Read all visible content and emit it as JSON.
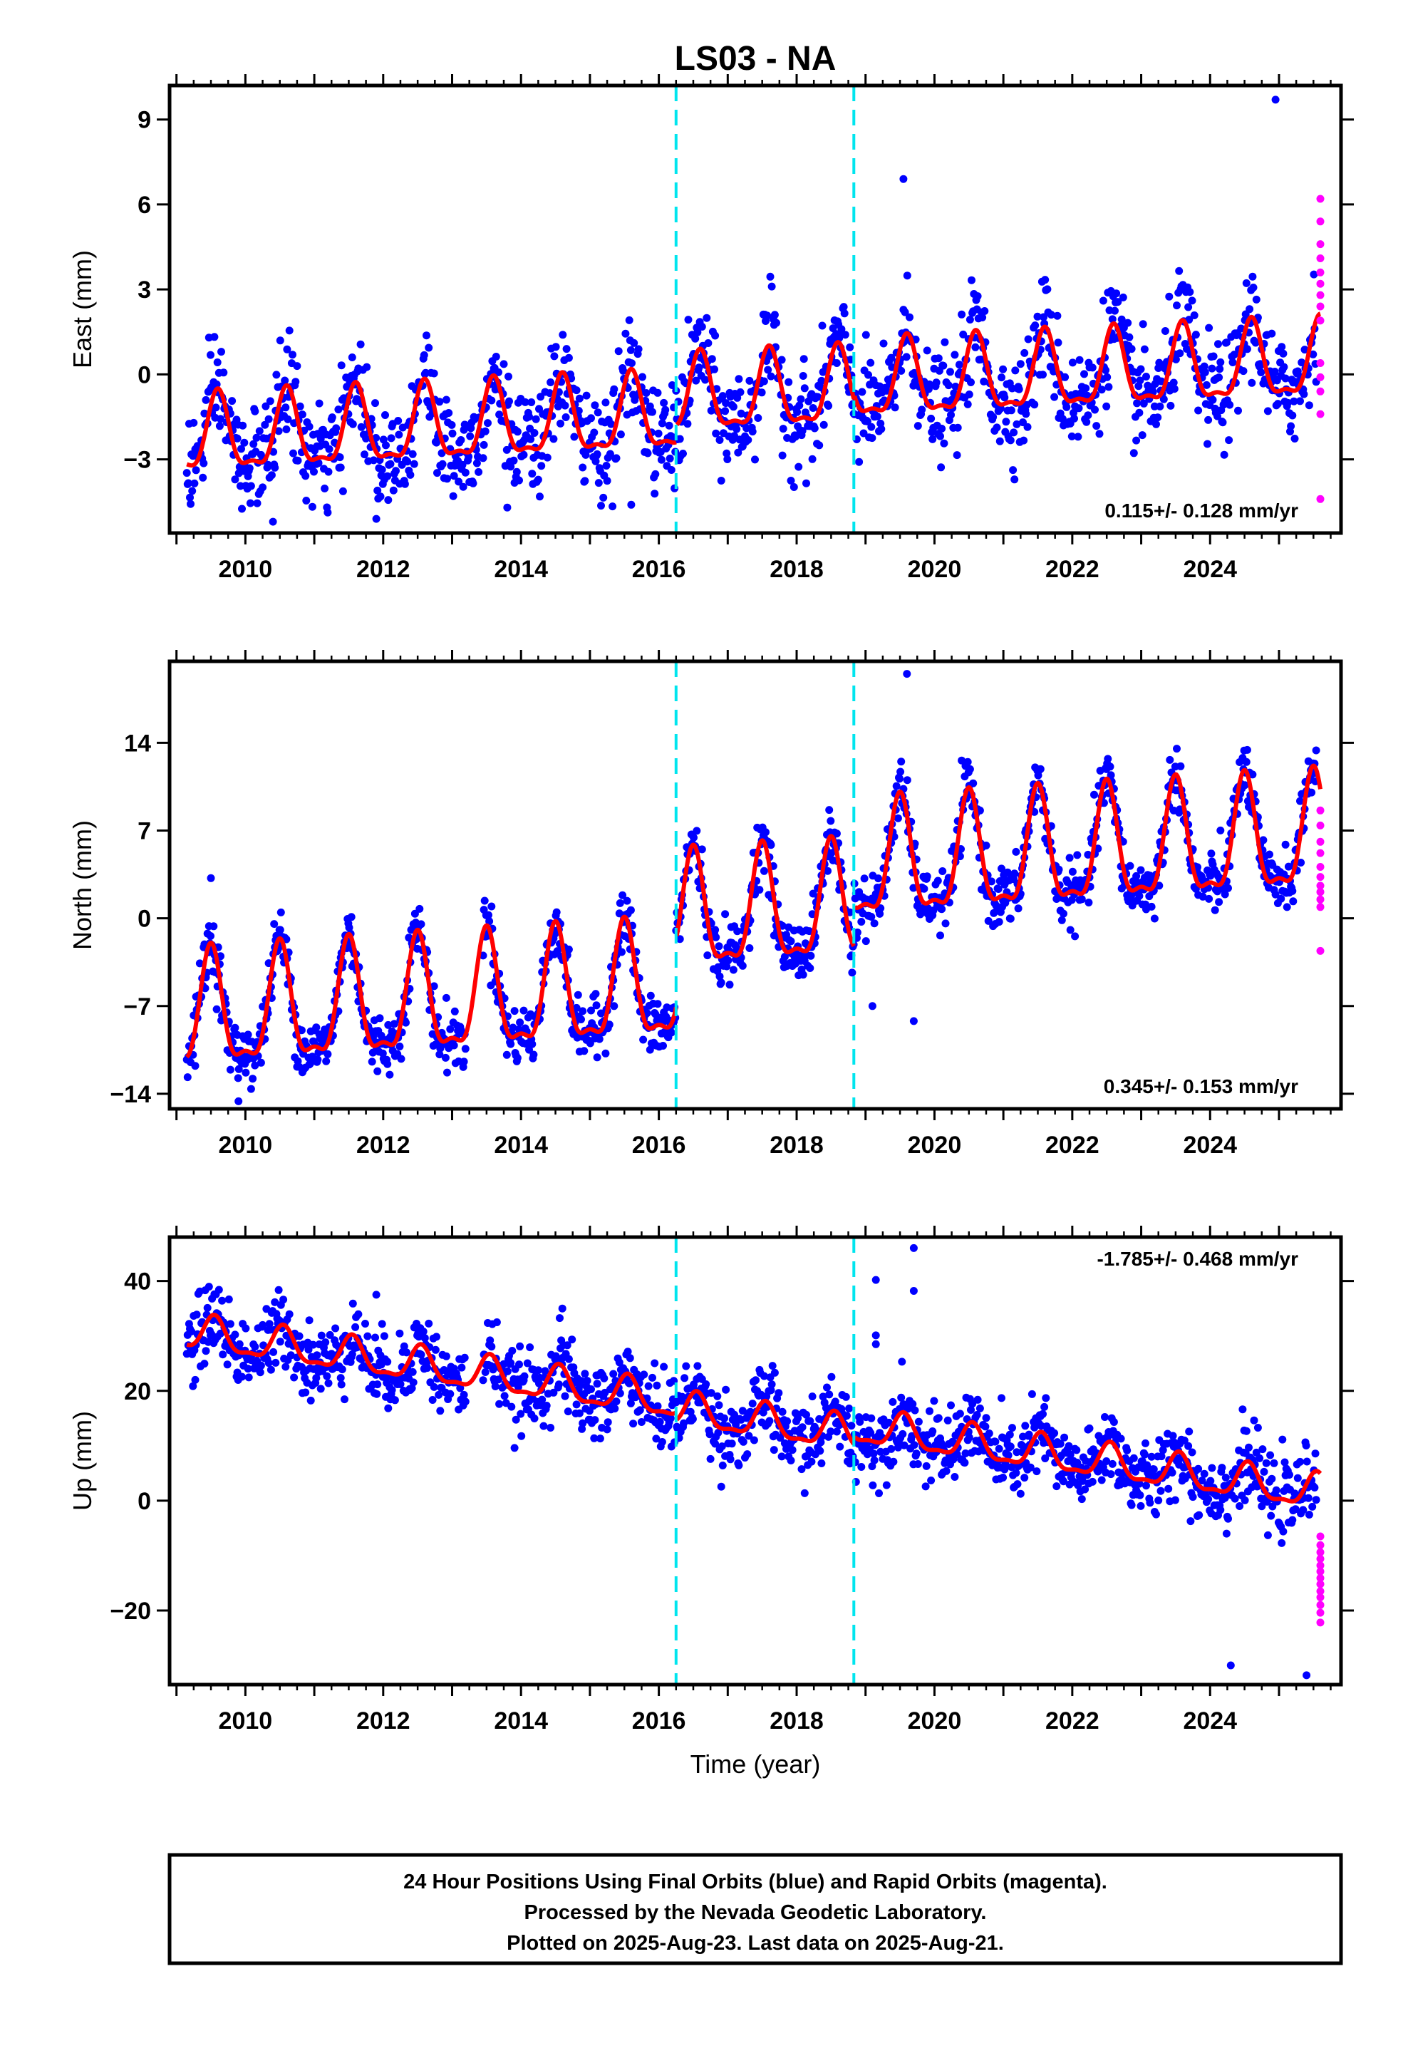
{
  "chart_data": {
    "type": "scatter",
    "title": "LS03 - NA",
    "xlabel": "Time (year)",
    "x_ticks": [
      2010,
      2012,
      2014,
      2016,
      2018,
      2020,
      2022,
      2024
    ],
    "xlim": [
      2008.9,
      2025.9
    ],
    "equipment_change_epochs": [
      2016.25,
      2018.83
    ],
    "colors": {
      "final_orbits": "#0000ff",
      "rapid_orbits": "#ff00ff",
      "model_fit": "#ff0000",
      "equipment_change": "#00e5ee"
    },
    "panels": [
      {
        "component": "east",
        "ylabel": "East (mm)",
        "ylim": [
          -5.6,
          10.2
        ],
        "y_ticks": [
          -3,
          0,
          3,
          6,
          9
        ],
        "y_tick_labels": [
          "−3",
          "0",
          "3",
          "6",
          "9"
        ],
        "rate_text": "0.115+/- 0.128 mm/yr",
        "rate_position": "bottom-right",
        "model": {
          "offsets": [
            -1.4,
            0.6,
            0.2,
            0.6
          ],
          "trend": 0.115,
          "amplitude": 1.3,
          "phase_year": 0.6
        },
        "scatter_sigma": 0.9,
        "rapid_values": [
          6.2,
          5.4,
          4.6,
          4.1,
          3.6,
          3.2,
          2.8,
          2.4,
          1.9,
          0.4,
          -0.1,
          -0.6,
          -1.4,
          -4.4
        ],
        "outliers": [
          [
            2024.95,
            9.7
          ],
          [
            2019.55,
            6.9
          ],
          [
            2010.4,
            -5.2
          ],
          [
            2011.9,
            -5.1
          ],
          [
            2013.8,
            -4.7
          ],
          [
            2015.6,
            -4.6
          ]
        ]
      },
      {
        "component": "north",
        "ylabel": "North (mm)",
        "ylim": [
          -15.2,
          20.5
        ],
        "y_ticks": [
          -14,
          -7,
          0,
          7,
          14
        ],
        "y_tick_labels": [
          "−14",
          "−7",
          "0",
          "7",
          "14"
        ],
        "rate_text": "0.345+/- 0.153 mm/yr",
        "rate_position": "bottom-right",
        "model": {
          "offsets": [
            -5.3,
            5.4,
            3.2,
            3.6
          ],
          "trend": 0.345,
          "amplitude": 4.4,
          "phase_year": 0.5
        },
        "scatter_sigma": 1.2,
        "rapid_values": [
          8.6,
          7.4,
          6.1,
          5.2,
          4.1,
          3.3,
          2.6,
          2.1,
          1.5,
          0.9,
          -2.6
        ],
        "outliers": [
          [
            2019.6,
            19.5
          ],
          [
            2009.5,
            3.2
          ],
          [
            2019.7,
            -8.2
          ],
          [
            2019.1,
            -7.0
          ],
          [
            2009.9,
            -14.6
          ]
        ]
      },
      {
        "component": "up",
        "ylabel": "Up (mm)",
        "ylim": [
          -33.5,
          48
        ],
        "y_ticks": [
          -20,
          0,
          20,
          40
        ],
        "y_tick_labels": [
          "−20",
          "0",
          "20",
          "40"
        ],
        "rate_text": "-1.785+/- 0.468 mm/yr",
        "rate_position": "top-right",
        "model": {
          "offsets": [
            16.5,
            -1.4,
            1.5,
            1.2
          ],
          "trend": -1.785,
          "amplitude": 3.0,
          "phase_year": 0.55
        },
        "scatter_sigma": 3.4,
        "rapid_values": [
          -6.5,
          -8.1,
          -9.4,
          -10.6,
          -11.8,
          -12.9,
          -14.1,
          -15.2,
          -16.5,
          -17.6,
          -19.0,
          -20.4,
          -22.2
        ],
        "outliers": [
          [
            2019.7,
            46.0
          ],
          [
            2019.15,
            40.2
          ],
          [
            2019.7,
            38.2
          ],
          [
            2019.15,
            30.1
          ],
          [
            2019.15,
            28.5
          ],
          [
            2014.6,
            35.0
          ],
          [
            2011.9,
            37.5
          ],
          [
            2025.4,
            -31.8
          ],
          [
            2024.3,
            -30.0
          ]
        ]
      }
    ]
  },
  "footer": {
    "line1": "24 Hour Positions Using Final Orbits (blue) and Rapid Orbits (magenta).",
    "line2": "Processed by the Nevada Geodetic Laboratory.",
    "line3": "Plotted on 2025-Aug-23. Last data on 2025-Aug-21."
  }
}
